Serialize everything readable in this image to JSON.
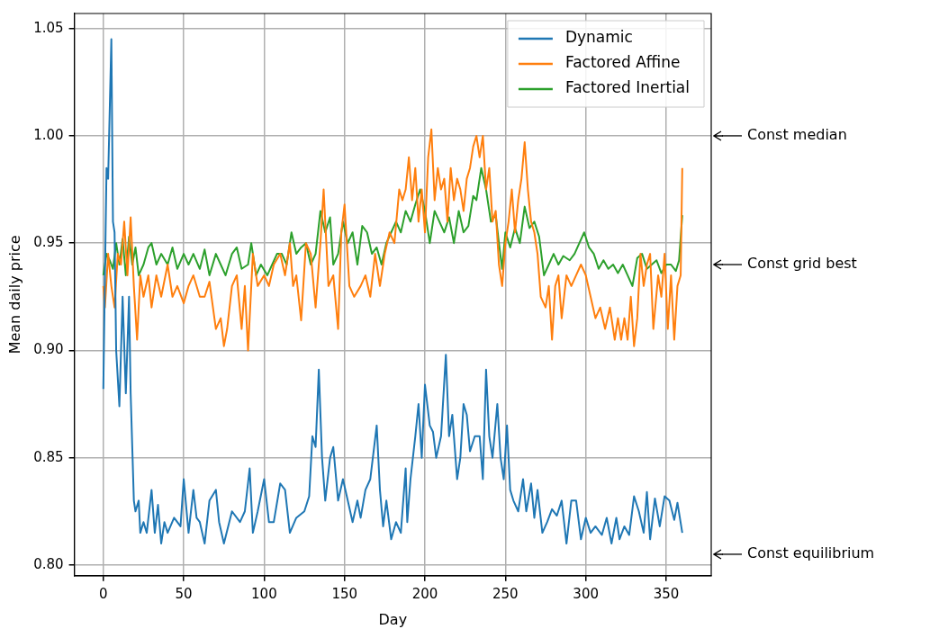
{
  "chart_data": {
    "type": "line",
    "xlabel": "Day",
    "ylabel": "Mean daily price",
    "xlim": [
      -18,
      378
    ],
    "ylim": [
      0.795,
      1.057
    ],
    "xticks": [
      0,
      50,
      100,
      150,
      200,
      250,
      300,
      350
    ],
    "yticks": [
      {
        "value": 0.8,
        "label": "0.80"
      },
      {
        "value": 0.85,
        "label": "0.85"
      },
      {
        "value": 0.9,
        "label": "0.90"
      },
      {
        "value": 0.95,
        "label": "0.95"
      },
      {
        "value": 1.0,
        "label": "1.00"
      },
      {
        "value": 1.05,
        "label": "1.05"
      }
    ],
    "grid": true,
    "legend": "top right",
    "ref_lines": [
      {
        "axis": "y",
        "value": 1.0,
        "label": "Const median"
      },
      {
        "axis": "y",
        "value": 0.94,
        "label": "Const grid best"
      },
      {
        "axis": "y",
        "value": 0.805,
        "label": "Const equilibrium"
      }
    ],
    "series": [
      {
        "name": "Dynamic",
        "color": "#1f77b4",
        "x": [
          0,
          2,
          3,
          5,
          6,
          7,
          8,
          10,
          12,
          14,
          16,
          17,
          19,
          20,
          22,
          23,
          25,
          27,
          30,
          32,
          34,
          36,
          38,
          40,
          44,
          48,
          50,
          53,
          56,
          58,
          60,
          63,
          66,
          70,
          72,
          75,
          80,
          85,
          88,
          91,
          93,
          96,
          100,
          103,
          106,
          110,
          113,
          116,
          120,
          125,
          128,
          130,
          132,
          134,
          136,
          138,
          141,
          143,
          146,
          149,
          152,
          155,
          158,
          160,
          163,
          166,
          170,
          172,
          174,
          176,
          179,
          182,
          185,
          188,
          189,
          191,
          194,
          196,
          198,
          200,
          203,
          205,
          207,
          210,
          213,
          215,
          217,
          220,
          222,
          224,
          226,
          228,
          231,
          234,
          236,
          238,
          240,
          242,
          245,
          247,
          249,
          251,
          253,
          255,
          258,
          261,
          263,
          266,
          268,
          270,
          273,
          276,
          279,
          282,
          285,
          288,
          291,
          294,
          297,
          300,
          303,
          306,
          310,
          313,
          316,
          319,
          321,
          324,
          327,
          330,
          333,
          336,
          338,
          340,
          343,
          346,
          349,
          352,
          355,
          357,
          360
        ],
        "values": [
          0.882,
          0.985,
          0.98,
          1.045,
          0.96,
          0.955,
          0.9,
          0.874,
          0.925,
          0.88,
          0.925,
          0.88,
          0.83,
          0.825,
          0.83,
          0.815,
          0.82,
          0.815,
          0.835,
          0.815,
          0.828,
          0.81,
          0.82,
          0.815,
          0.822,
          0.818,
          0.84,
          0.815,
          0.835,
          0.822,
          0.82,
          0.81,
          0.83,
          0.835,
          0.82,
          0.81,
          0.825,
          0.82,
          0.825,
          0.845,
          0.815,
          0.825,
          0.84,
          0.82,
          0.82,
          0.838,
          0.835,
          0.815,
          0.822,
          0.825,
          0.832,
          0.86,
          0.855,
          0.891,
          0.85,
          0.83,
          0.85,
          0.855,
          0.83,
          0.84,
          0.83,
          0.82,
          0.83,
          0.822,
          0.835,
          0.84,
          0.865,
          0.835,
          0.818,
          0.83,
          0.812,
          0.82,
          0.815,
          0.845,
          0.82,
          0.84,
          0.86,
          0.875,
          0.85,
          0.884,
          0.865,
          0.862,
          0.85,
          0.86,
          0.898,
          0.86,
          0.87,
          0.84,
          0.85,
          0.875,
          0.87,
          0.853,
          0.86,
          0.86,
          0.84,
          0.891,
          0.86,
          0.85,
          0.875,
          0.85,
          0.84,
          0.865,
          0.835,
          0.83,
          0.825,
          0.84,
          0.825,
          0.838,
          0.822,
          0.835,
          0.815,
          0.82,
          0.826,
          0.823,
          0.83,
          0.81,
          0.83,
          0.83,
          0.812,
          0.822,
          0.815,
          0.818,
          0.814,
          0.822,
          0.81,
          0.822,
          0.812,
          0.818,
          0.814,
          0.832,
          0.825,
          0.815,
          0.834,
          0.812,
          0.831,
          0.818,
          0.832,
          0.83,
          0.821,
          0.829,
          0.815
        ]
      },
      {
        "name": "Factored Affine",
        "color": "#ff7f0e",
        "x": [
          0,
          1,
          3,
          5,
          7,
          9,
          11,
          13,
          15,
          17,
          19,
          21,
          23,
          25,
          28,
          30,
          33,
          36,
          40,
          43,
          46,
          50,
          53,
          56,
          60,
          63,
          66,
          70,
          73,
          75,
          77,
          80,
          83,
          86,
          88,
          90,
          93,
          96,
          100,
          103,
          106,
          110,
          113,
          116,
          118,
          120,
          123,
          126,
          129,
          132,
          135,
          137,
          140,
          143,
          146,
          148,
          150,
          153,
          156,
          160,
          163,
          166,
          169,
          172,
          175,
          178,
          181,
          184,
          186,
          188,
          190,
          192,
          194,
          196,
          198,
          200,
          202,
          204,
          206,
          208,
          210,
          212,
          214,
          216,
          218,
          220,
          222,
          224,
          226,
          228,
          230,
          232,
          234,
          236,
          238,
          240,
          242,
          244,
          246,
          248,
          250,
          252,
          254,
          256,
          258,
          260,
          262,
          264,
          266,
          268,
          270,
          272,
          275,
          277,
          279,
          281,
          283,
          285,
          288,
          291,
          294,
          297,
          300,
          303,
          306,
          309,
          312,
          315,
          318,
          320,
          322,
          324,
          326,
          328,
          330,
          332,
          334,
          336,
          338,
          340,
          342,
          345,
          347,
          349,
          351,
          353,
          355,
          357,
          359,
          360
        ],
        "values": [
          0.93,
          0.92,
          0.945,
          0.93,
          0.92,
          0.945,
          0.94,
          0.96,
          0.935,
          0.962,
          0.93,
          0.905,
          0.935,
          0.925,
          0.935,
          0.92,
          0.935,
          0.925,
          0.94,
          0.925,
          0.93,
          0.922,
          0.93,
          0.935,
          0.925,
          0.925,
          0.932,
          0.91,
          0.915,
          0.902,
          0.91,
          0.93,
          0.935,
          0.91,
          0.93,
          0.9,
          0.945,
          0.93,
          0.935,
          0.93,
          0.94,
          0.945,
          0.935,
          0.95,
          0.93,
          0.935,
          0.914,
          0.95,
          0.945,
          0.92,
          0.95,
          0.975,
          0.93,
          0.935,
          0.91,
          0.955,
          0.968,
          0.93,
          0.925,
          0.93,
          0.935,
          0.925,
          0.945,
          0.93,
          0.945,
          0.955,
          0.95,
          0.975,
          0.97,
          0.975,
          0.99,
          0.97,
          0.985,
          0.96,
          0.975,
          0.955,
          0.99,
          1.003,
          0.97,
          0.985,
          0.975,
          0.98,
          0.96,
          0.985,
          0.97,
          0.98,
          0.975,
          0.965,
          0.98,
          0.985,
          0.995,
          1.0,
          0.99,
          1.0,
          0.975,
          0.985,
          0.96,
          0.965,
          0.94,
          0.93,
          0.95,
          0.96,
          0.975,
          0.955,
          0.97,
          0.98,
          0.997,
          0.975,
          0.96,
          0.955,
          0.945,
          0.925,
          0.92,
          0.93,
          0.905,
          0.93,
          0.935,
          0.915,
          0.935,
          0.93,
          0.935,
          0.94,
          0.935,
          0.925,
          0.915,
          0.92,
          0.91,
          0.92,
          0.905,
          0.915,
          0.905,
          0.915,
          0.905,
          0.925,
          0.902,
          0.915,
          0.945,
          0.93,
          0.94,
          0.945,
          0.91,
          0.935,
          0.925,
          0.945,
          0.91,
          0.935,
          0.905,
          0.93,
          0.935,
          0.985
        ]
      },
      {
        "name": "Factored Inertial",
        "color": "#2ca02c",
        "x": [
          0,
          2,
          4,
          6,
          8,
          10,
          12,
          14,
          16,
          18,
          20,
          22,
          25,
          28,
          30,
          33,
          36,
          40,
          43,
          46,
          50,
          53,
          56,
          60,
          63,
          66,
          70,
          73,
          76,
          80,
          83,
          86,
          90,
          92,
          95,
          98,
          102,
          105,
          108,
          111,
          114,
          117,
          120,
          123,
          126,
          129,
          132,
          135,
          138,
          141,
          143,
          146,
          149,
          152,
          155,
          158,
          161,
          164,
          167,
          170,
          173,
          176,
          179,
          182,
          185,
          188,
          191,
          194,
          197,
          200,
          203,
          206,
          209,
          212,
          215,
          218,
          221,
          224,
          227,
          230,
          232,
          235,
          238,
          241,
          244,
          246,
          248,
          250,
          253,
          256,
          259,
          262,
          265,
          268,
          271,
          274,
          277,
          280,
          283,
          286,
          290,
          293,
          296,
          299,
          302,
          305,
          308,
          311,
          314,
          317,
          320,
          323,
          326,
          329,
          332,
          335,
          338,
          341,
          344,
          347,
          350,
          353,
          356,
          358,
          360
        ],
        "values": [
          0.935,
          0.945,
          0.942,
          0.938,
          0.95,
          0.94,
          0.952,
          0.935,
          0.953,
          0.94,
          0.948,
          0.935,
          0.94,
          0.948,
          0.95,
          0.94,
          0.945,
          0.94,
          0.948,
          0.938,
          0.945,
          0.94,
          0.945,
          0.938,
          0.947,
          0.935,
          0.945,
          0.94,
          0.935,
          0.945,
          0.948,
          0.938,
          0.94,
          0.95,
          0.935,
          0.94,
          0.935,
          0.94,
          0.945,
          0.945,
          0.94,
          0.955,
          0.945,
          0.948,
          0.95,
          0.94,
          0.945,
          0.965,
          0.955,
          0.962,
          0.94,
          0.945,
          0.96,
          0.95,
          0.955,
          0.94,
          0.958,
          0.955,
          0.945,
          0.948,
          0.94,
          0.95,
          0.955,
          0.96,
          0.955,
          0.965,
          0.96,
          0.968,
          0.975,
          0.965,
          0.95,
          0.965,
          0.96,
          0.955,
          0.962,
          0.95,
          0.965,
          0.955,
          0.958,
          0.972,
          0.97,
          0.985,
          0.975,
          0.96,
          0.963,
          0.95,
          0.938,
          0.955,
          0.948,
          0.957,
          0.95,
          0.967,
          0.957,
          0.96,
          0.953,
          0.935,
          0.94,
          0.945,
          0.94,
          0.944,
          0.942,
          0.945,
          0.95,
          0.955,
          0.948,
          0.945,
          0.938,
          0.942,
          0.938,
          0.94,
          0.936,
          0.94,
          0.935,
          0.93,
          0.943,
          0.945,
          0.938,
          0.94,
          0.942,
          0.936,
          0.94,
          0.94,
          0.937,
          0.942,
          0.963
        ]
      }
    ]
  }
}
